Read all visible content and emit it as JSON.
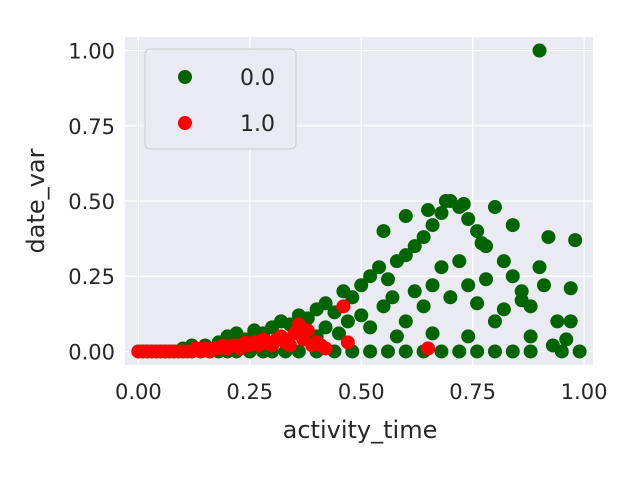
{
  "chart_data": {
    "type": "scatter",
    "title": "",
    "xlabel": "activity_time",
    "ylabel": "date_var",
    "xlim": [
      -0.03,
      1.02
    ],
    "ylim": [
      -0.045,
      1.045
    ],
    "x_ticks": [
      "0.00",
      "0.25",
      "0.50",
      "0.75",
      "1.00"
    ],
    "y_ticks": [
      "0.00",
      "0.25",
      "0.50",
      "0.75",
      "1.00"
    ],
    "x_tick_values": [
      0,
      0.25,
      0.5,
      0.75,
      1.0
    ],
    "y_tick_values": [
      0,
      0.25,
      0.5,
      0.75,
      1.0
    ],
    "grid": true,
    "legend_position": "top-left",
    "background_color": "#EAEAF2",
    "series": [
      {
        "name": "0.0",
        "color": "#006400",
        "points": [
          [
            0.0,
            0.0
          ],
          [
            0.01,
            0.0
          ],
          [
            0.02,
            0.0
          ],
          [
            0.03,
            0.0
          ],
          [
            0.04,
            0.0
          ],
          [
            0.05,
            0.0
          ],
          [
            0.06,
            0.0
          ],
          [
            0.07,
            0.0
          ],
          [
            0.08,
            0.0
          ],
          [
            0.09,
            0.0
          ],
          [
            0.1,
            0.0
          ],
          [
            0.12,
            0.0
          ],
          [
            0.14,
            0.0
          ],
          [
            0.16,
            0.0
          ],
          [
            0.18,
            0.0
          ],
          [
            0.2,
            0.0
          ],
          [
            0.22,
            0.0
          ],
          [
            0.25,
            0.0
          ],
          [
            0.28,
            0.0
          ],
          [
            0.3,
            0.0
          ],
          [
            0.33,
            0.0
          ],
          [
            0.36,
            0.0
          ],
          [
            0.4,
            0.0
          ],
          [
            0.44,
            0.0
          ],
          [
            0.48,
            0.0
          ],
          [
            0.52,
            0.0
          ],
          [
            0.56,
            0.0
          ],
          [
            0.6,
            0.0
          ],
          [
            0.64,
            0.0
          ],
          [
            0.68,
            0.0
          ],
          [
            0.72,
            0.0
          ],
          [
            0.76,
            0.0
          ],
          [
            0.8,
            0.0
          ],
          [
            0.84,
            0.0
          ],
          [
            0.88,
            0.0
          ],
          [
            0.1,
            0.01
          ],
          [
            0.12,
            0.02
          ],
          [
            0.15,
            0.02
          ],
          [
            0.18,
            0.03
          ],
          [
            0.2,
            0.05
          ],
          [
            0.22,
            0.06
          ],
          [
            0.24,
            0.04
          ],
          [
            0.26,
            0.07
          ],
          [
            0.28,
            0.06
          ],
          [
            0.3,
            0.08
          ],
          [
            0.32,
            0.1
          ],
          [
            0.34,
            0.09
          ],
          [
            0.36,
            0.12
          ],
          [
            0.38,
            0.11
          ],
          [
            0.4,
            0.14
          ],
          [
            0.42,
            0.16
          ],
          [
            0.44,
            0.13
          ],
          [
            0.46,
            0.2
          ],
          [
            0.48,
            0.18
          ],
          [
            0.5,
            0.22
          ],
          [
            0.52,
            0.25
          ],
          [
            0.54,
            0.28
          ],
          [
            0.56,
            0.24
          ],
          [
            0.58,
            0.3
          ],
          [
            0.6,
            0.32
          ],
          [
            0.62,
            0.35
          ],
          [
            0.64,
            0.38
          ],
          [
            0.66,
            0.42
          ],
          [
            0.68,
            0.46
          ],
          [
            0.7,
            0.5
          ],
          [
            0.72,
            0.48
          ],
          [
            0.74,
            0.44
          ],
          [
            0.76,
            0.4
          ],
          [
            0.78,
            0.35
          ],
          [
            0.8,
            0.48
          ],
          [
            0.82,
            0.3
          ],
          [
            0.84,
            0.25
          ],
          [
            0.86,
            0.2
          ],
          [
            0.88,
            0.15
          ],
          [
            0.9,
            0.28
          ],
          [
            0.92,
            0.38
          ],
          [
            0.94,
            0.1
          ],
          [
            0.96,
            0.04
          ],
          [
            0.98,
            0.37
          ],
          [
            0.99,
            0.0
          ],
          [
            0.4,
            0.05
          ],
          [
            0.42,
            0.08
          ],
          [
            0.45,
            0.06
          ],
          [
            0.47,
            0.1
          ],
          [
            0.5,
            0.12
          ],
          [
            0.52,
            0.08
          ],
          [
            0.55,
            0.15
          ],
          [
            0.57,
            0.18
          ],
          [
            0.6,
            0.1
          ],
          [
            0.62,
            0.2
          ],
          [
            0.64,
            0.15
          ],
          [
            0.66,
            0.22
          ],
          [
            0.68,
            0.28
          ],
          [
            0.7,
            0.18
          ],
          [
            0.72,
            0.3
          ],
          [
            0.74,
            0.22
          ],
          [
            0.76,
            0.16
          ],
          [
            0.78,
            0.24
          ],
          [
            0.8,
            0.1
          ],
          [
            0.82,
            0.14
          ],
          [
            0.55,
            0.4
          ],
          [
            0.6,
            0.45
          ],
          [
            0.65,
            0.47
          ],
          [
            0.69,
            0.5
          ],
          [
            0.73,
            0.49
          ],
          [
            0.77,
            0.36
          ],
          [
            0.84,
            0.42
          ],
          [
            0.58,
            0.05
          ],
          [
            0.66,
            0.06
          ],
          [
            0.74,
            0.05
          ],
          [
            0.9,
            1.0
          ],
          [
            0.91,
            0.22
          ],
          [
            0.97,
            0.21
          ],
          [
            0.97,
            0.1
          ],
          [
            0.86,
            0.17
          ],
          [
            0.88,
            0.05
          ],
          [
            0.93,
            0.02
          ],
          [
            0.95,
            0.0
          ]
        ]
      },
      {
        "name": "1.0",
        "color": "#FF0000",
        "points": [
          [
            0.0,
            0.0
          ],
          [
            0.01,
            0.0
          ],
          [
            0.02,
            0.0
          ],
          [
            0.03,
            0.0
          ],
          [
            0.04,
            0.0
          ],
          [
            0.05,
            0.0
          ],
          [
            0.06,
            0.0
          ],
          [
            0.07,
            0.0
          ],
          [
            0.08,
            0.0
          ],
          [
            0.09,
            0.0
          ],
          [
            0.1,
            0.0
          ],
          [
            0.11,
            0.0
          ],
          [
            0.12,
            0.0
          ],
          [
            0.13,
            0.01
          ],
          [
            0.14,
            0.0
          ],
          [
            0.15,
            0.01
          ],
          [
            0.16,
            0.0
          ],
          [
            0.17,
            0.01
          ],
          [
            0.18,
            0.01
          ],
          [
            0.19,
            0.02
          ],
          [
            0.2,
            0.01
          ],
          [
            0.21,
            0.02
          ],
          [
            0.22,
            0.02
          ],
          [
            0.23,
            0.01
          ],
          [
            0.24,
            0.03
          ],
          [
            0.25,
            0.02
          ],
          [
            0.26,
            0.03
          ],
          [
            0.27,
            0.02
          ],
          [
            0.28,
            0.04
          ],
          [
            0.29,
            0.03
          ],
          [
            0.3,
            0.02
          ],
          [
            0.31,
            0.04
          ],
          [
            0.32,
            0.05
          ],
          [
            0.33,
            0.03
          ],
          [
            0.34,
            0.02
          ],
          [
            0.35,
            0.06
          ],
          [
            0.36,
            0.09
          ],
          [
            0.37,
            0.04
          ],
          [
            0.38,
            0.07
          ],
          [
            0.39,
            0.02
          ],
          [
            0.4,
            0.03
          ],
          [
            0.41,
            0.02
          ],
          [
            0.42,
            0.01
          ],
          [
            0.46,
            0.15
          ],
          [
            0.47,
            0.03
          ],
          [
            0.65,
            0.01
          ]
        ]
      }
    ]
  }
}
